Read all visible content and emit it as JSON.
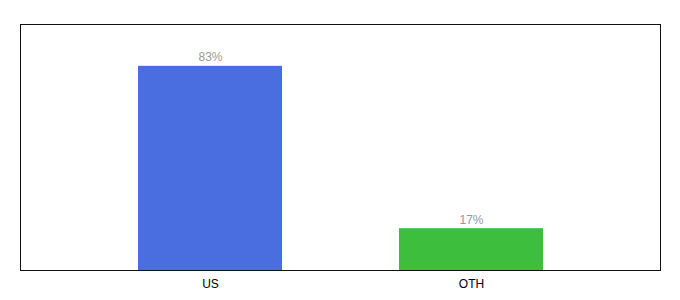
{
  "chart_data": {
    "type": "bar",
    "categories": [
      "US",
      "OTH"
    ],
    "values": [
      83,
      17
    ],
    "value_labels": [
      "83%",
      "17%"
    ],
    "colors": [
      "#4A6EE0",
      "#3DBF3D"
    ],
    "ylim": [
      0,
      100
    ],
    "data_labels": true,
    "tick_labels": "x",
    "grid": false
  }
}
